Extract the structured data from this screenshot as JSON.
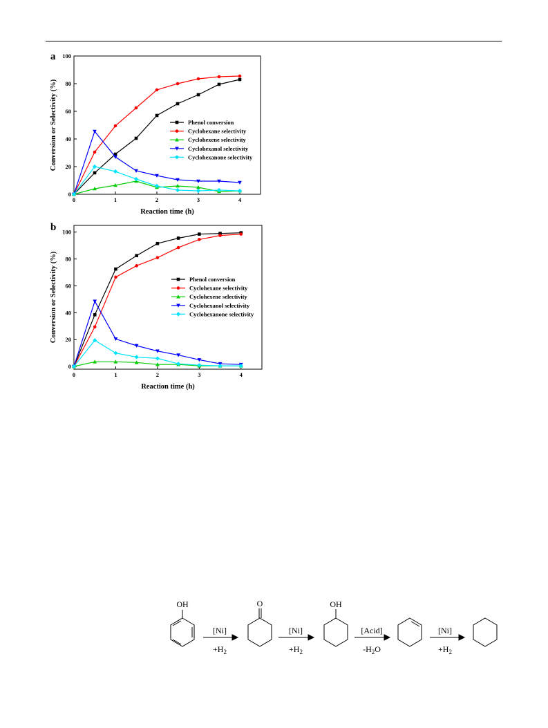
{
  "chart_data": [
    {
      "panel": "a",
      "type": "line",
      "xlabel": "Reaction time (h)",
      "ylabel": "Conversion or Selectivity (%)",
      "xlim": [
        0,
        4.5
      ],
      "ylim": [
        0,
        100
      ],
      "xticks": [
        0,
        1,
        2,
        3,
        4
      ],
      "yticks": [
        0,
        20,
        40,
        60,
        80,
        100
      ],
      "x": [
        0,
        0.5,
        1,
        1.5,
        2,
        2.5,
        3,
        3.5,
        4
      ],
      "legend_position": "center-right",
      "grid": false,
      "series": [
        {
          "name": "Phenol conversion",
          "color": "#000000",
          "marker": "square",
          "values": [
            0,
            15.5,
            29,
            40.5,
            57,
            65.5,
            72,
            79.5,
            83
          ]
        },
        {
          "name": "Cyclohexane selectivity",
          "color": "#ff0000",
          "marker": "circle",
          "values": [
            0,
            30.5,
            49.5,
            62.5,
            75.5,
            80,
            83.5,
            85,
            85.5
          ]
        },
        {
          "name": "Cyclohexene selectivity",
          "color": "#00cc00",
          "marker": "triangle-up",
          "values": [
            0,
            4,
            6.5,
            9.5,
            5,
            6,
            5,
            2,
            2.5
          ]
        },
        {
          "name": "Cyclohexanol selectivity",
          "color": "#0000ff",
          "marker": "triangle-down",
          "values": [
            0,
            45.5,
            27,
            17,
            13.5,
            10.5,
            9.5,
            9.5,
            8.5
          ]
        },
        {
          "name": "Cyclohexanone selectivity",
          "color": "#00e5ff",
          "marker": "diamond",
          "values": [
            0,
            20,
            16.5,
            11,
            6,
            3,
            2.5,
            3,
            2.5
          ]
        }
      ]
    },
    {
      "panel": "b",
      "type": "line",
      "xlabel": "Reaction time (h)",
      "ylabel": "Conversion or Selectivity (%)",
      "xlim": [
        0,
        4.5
      ],
      "ylim": [
        -2,
        105
      ],
      "xticks": [
        0,
        1,
        2,
        3,
        4
      ],
      "yticks": [
        0,
        20,
        40,
        60,
        80,
        100
      ],
      "x": [
        0,
        0.5,
        1,
        1.5,
        2,
        2.5,
        3,
        3.5,
        4
      ],
      "legend_position": "center-right",
      "grid": false,
      "series": [
        {
          "name": "Phenol conversion",
          "color": "#000000",
          "marker": "square",
          "values": [
            0,
            38.5,
            72.5,
            82.5,
            91.5,
            95.5,
            98.5,
            99,
            99.5
          ]
        },
        {
          "name": "Cyclohexane selectivity",
          "color": "#ff0000",
          "marker": "circle",
          "values": [
            0,
            29.5,
            66.5,
            75,
            81,
            88.5,
            94.5,
            97.5,
            98.5
          ]
        },
        {
          "name": "Cyclohexene selectivity",
          "color": "#00cc00",
          "marker": "triangle-up",
          "values": [
            0,
            3.5,
            3.5,
            3,
            1.5,
            1.5,
            0.5,
            0.5,
            0.5
          ]
        },
        {
          "name": "Cyclohexanol selectivity",
          "color": "#0000ff",
          "marker": "triangle-down",
          "values": [
            0,
            48.5,
            20.5,
            15.5,
            11.5,
            8.5,
            5,
            2,
            1.5
          ]
        },
        {
          "name": "Cyclohexanone selectivity",
          "color": "#00e5ff",
          "marker": "diamond",
          "values": [
            0,
            19.5,
            10,
            7,
            6,
            2,
            1,
            0.5,
            0.5
          ]
        }
      ]
    }
  ],
  "scheme": {
    "groups": [
      "OH",
      "O",
      "OH"
    ],
    "steps": [
      {
        "catalyst": "[Ni]",
        "condition_main": "+H",
        "condition_sub": "2"
      },
      {
        "catalyst": "[Ni]",
        "condition_main": "+H",
        "condition_sub": "2"
      },
      {
        "catalyst": "[Acid]",
        "condition_main": "-H",
        "condition_sub": "2",
        "condition_tail": "O"
      },
      {
        "catalyst": "[Ni]",
        "condition_main": "+H",
        "condition_sub": "2"
      }
    ]
  }
}
